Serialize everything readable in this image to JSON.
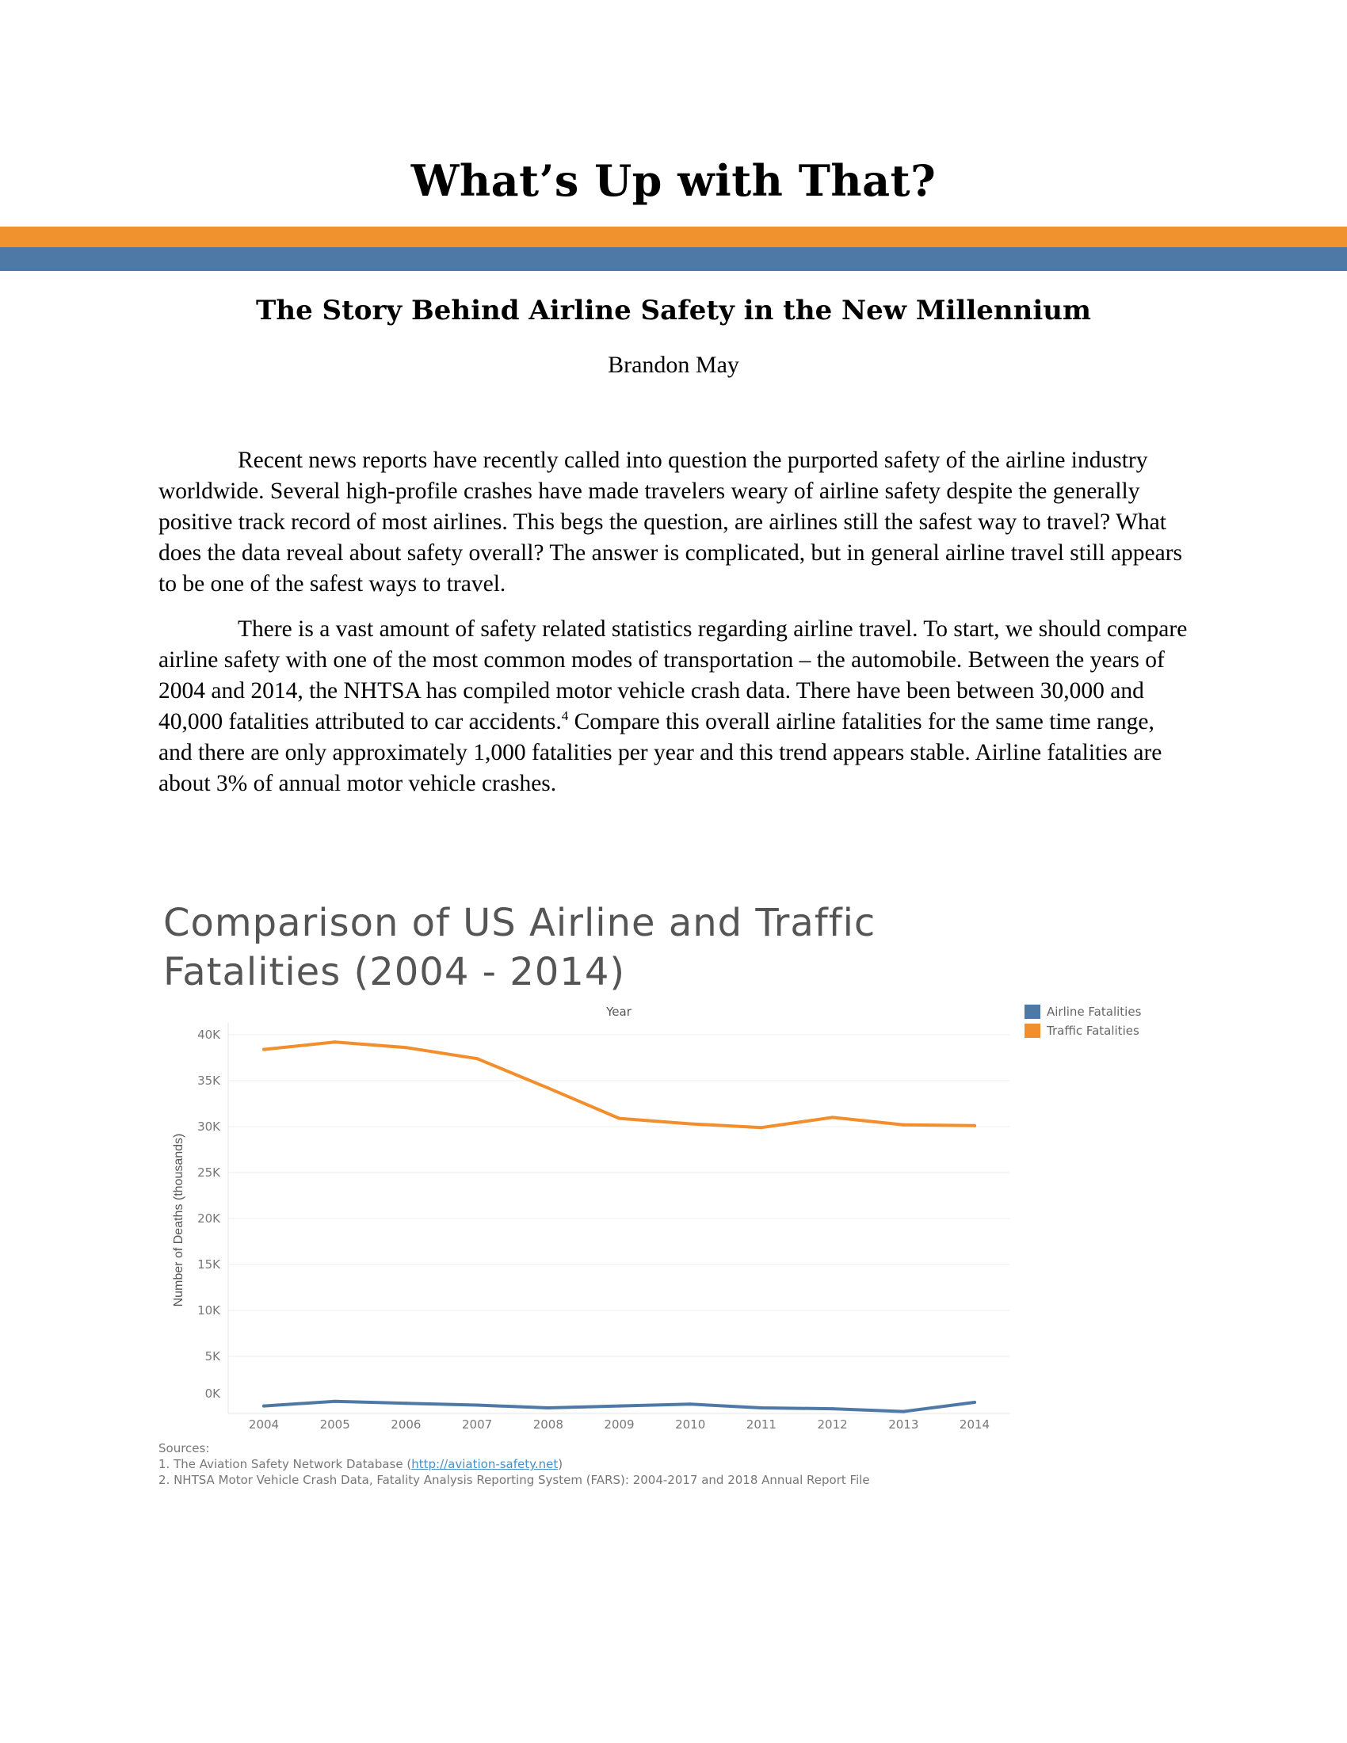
{
  "document": {
    "title": "What’s Up with That?",
    "subtitle": "The Story Behind Airline Safety in the New Millennium",
    "author": "Brandon May",
    "paragraph1": "Recent news reports have recently called into question the purported safety of the airline industry worldwide.  Several high-profile crashes have made travelers weary of airline safety despite the generally positive track record of most airlines.  This begs the question, are airlines still the safest way to travel?  What does the data reveal about safety overall?  The answer is complicated, but in general airline travel still appears to be one of the safest ways to travel.",
    "paragraph2_before_ref": "There is a vast amount of safety related statistics regarding airline travel.  To start, we should compare airline safety with one of the most common modes of transportation – the automobile.  Between the years of 2004 and 2014, the NHTSA has compiled motor vehicle crash data.  There have been between 30,000 and 40,000 fatalities attributed to car accidents.",
    "paragraph2_ref": "4",
    "paragraph2_after_ref": " Compare this overall airline fatalities for the same time range, and there are only approximately 1,000 fatalities per year and this trend appears stable.  Airline fatalities are about 3% of annual motor vehicle crashes."
  },
  "colors": {
    "orange_band": "#f0922e",
    "blue_band": "#4e79a7",
    "airline_series": "#4e79a7",
    "traffic_series": "#f28e2b"
  },
  "chart_title_line1": "Comparison of US Airline and Traffic",
  "chart_title_line2": "Fatalities (2004 - 2014)",
  "chart_data": {
    "type": "line",
    "x_axis_title": "Year",
    "ylabel": "Number of Deaths (thousands)",
    "x": [
      "2004",
      "2005",
      "2006",
      "2007",
      "2008",
      "2009",
      "2010",
      "2011",
      "2012",
      "2013",
      "2014"
    ],
    "ylim": [
      0,
      40000
    ],
    "y_ticks": [
      "0K",
      "5K",
      "10K",
      "15K",
      "20K",
      "25K",
      "30K",
      "35K",
      "40K"
    ],
    "y_tick_values": [
      0,
      5000,
      10000,
      15000,
      20000,
      25000,
      30000,
      35000,
      40000
    ],
    "grid": true,
    "legend_position": "top-right",
    "series": [
      {
        "name": "Airline Fatalities",
        "color": "#4e79a7",
        "values": [
          -400,
          100,
          -100,
          -300,
          -600,
          -400,
          -200,
          -600,
          -700,
          -1000,
          0
        ]
      },
      {
        "name": "Traffic Fatalities",
        "color": "#f28e2b",
        "values": [
          38400,
          39200,
          38600,
          37400,
          34200,
          30900,
          30300,
          29900,
          31000,
          30200,
          30100
        ]
      }
    ]
  },
  "sources": {
    "heading": "Sources:",
    "item1_prefix": "1. The Aviation Safety Network Database (",
    "item1_link": "http://aviation-safety.net",
    "item1_suffix": ")",
    "item2": "2. NHTSA Motor Vehicle Crash Data, Fatality Analysis Reporting System (FARS): 2004-2017 and 2018 Annual Report File"
  }
}
